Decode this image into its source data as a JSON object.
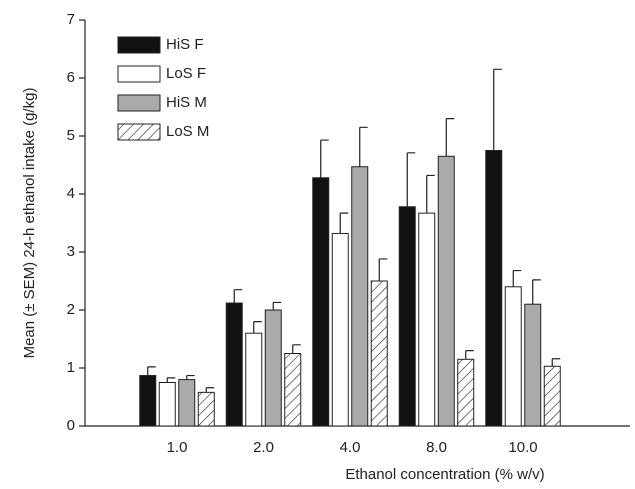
{
  "chart_data": {
    "type": "bar",
    "xlabel": "Ethanol concentration (% w/v)",
    "ylabel": "Mean (± SEM) 24-h ethanol intake (g/kg)",
    "categories": [
      "1.0",
      "2.0",
      "4.0",
      "8.0",
      "10.0"
    ],
    "series": [
      {
        "name": "HiS F",
        "color": "#111111",
        "hatch": false,
        "values": [
          0.87,
          2.12,
          4.28,
          3.78,
          4.75
        ],
        "errors": [
          0.15,
          0.23,
          0.65,
          0.93,
          1.4
        ]
      },
      {
        "name": "LoS F",
        "color": "#ffffff",
        "hatch": false,
        "values": [
          0.75,
          1.6,
          3.32,
          3.67,
          2.4
        ],
        "errors": [
          0.08,
          0.2,
          0.35,
          0.65,
          0.28
        ]
      },
      {
        "name": "HiS M",
        "color": "#aaaaaa",
        "hatch": false,
        "values": [
          0.8,
          2.0,
          4.47,
          4.65,
          2.1
        ],
        "errors": [
          0.07,
          0.13,
          0.68,
          0.65,
          0.42
        ]
      },
      {
        "name": "LoS M",
        "color": "#ffffff",
        "hatch": true,
        "values": [
          0.58,
          1.25,
          2.5,
          1.15,
          1.03
        ],
        "errors": [
          0.08,
          0.15,
          0.38,
          0.15,
          0.13
        ]
      }
    ],
    "ylim": [
      0,
      7
    ],
    "yticks": [
      0,
      1,
      2,
      3,
      4,
      5,
      6,
      7
    ],
    "legend": "upper left"
  }
}
